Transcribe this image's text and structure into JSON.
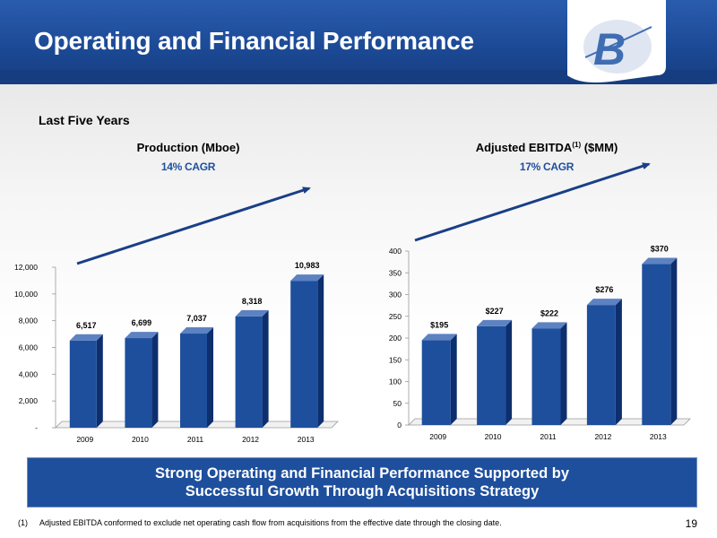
{
  "header": {
    "title": "Operating and Financial Performance",
    "brand_color": "#1e4f9d"
  },
  "subtitle": "Last Five Years",
  "charts": {
    "production": {
      "title": "Production (Mboe)",
      "cagr": "14% CAGR"
    },
    "ebitda": {
      "title_main": "Adjusted EBITDA",
      "title_sup": "(1)",
      "title_tail": " ($MM)",
      "cagr": "17% CAGR"
    }
  },
  "chart_data": [
    {
      "type": "bar",
      "title": "Production (Mboe)",
      "categories": [
        "2009",
        "2010",
        "2011",
        "2012",
        "2013"
      ],
      "values": [
        6517,
        6699,
        7037,
        8318,
        10983
      ],
      "value_labels": [
        "6,517",
        "6,699",
        "7,037",
        "8,318",
        "10,983"
      ],
      "ylim": [
        0,
        12000
      ],
      "yticks": [
        0,
        2000,
        4000,
        6000,
        8000,
        10000,
        12000
      ],
      "ytick_labels": [
        "-",
        "2,000",
        "4,000",
        "6,000",
        "8,000",
        "10,000",
        "12,000"
      ],
      "bar_color": "#1e4f9d",
      "grid": false
    },
    {
      "type": "bar",
      "title": "Adjusted EBITDA(1) ($MM)",
      "categories": [
        "2009",
        "2010",
        "2011",
        "2012",
        "2013"
      ],
      "values": [
        195,
        227,
        222,
        276,
        370
      ],
      "value_labels": [
        "$195",
        "$227",
        "$222",
        "$276",
        "$370"
      ],
      "ylim": [
        0,
        400
      ],
      "yticks": [
        0,
        50,
        100,
        150,
        200,
        250,
        300,
        350,
        400
      ],
      "ytick_labels": [
        "0",
        "50",
        "100",
        "150",
        "200",
        "250",
        "300",
        "350",
        "400"
      ],
      "bar_color": "#1e4f9d",
      "grid": false
    }
  ],
  "banner": {
    "line1": "Strong Operating and Financial Performance Supported by",
    "line2": "Successful Growth Through Acquisitions Strategy"
  },
  "footnote": {
    "marker": "(1)",
    "text": "Adjusted EBITDA conformed to exclude net operating cash flow from acquisitions from the effective date through the closing date."
  },
  "page_number": "19",
  "logo_text": "B"
}
